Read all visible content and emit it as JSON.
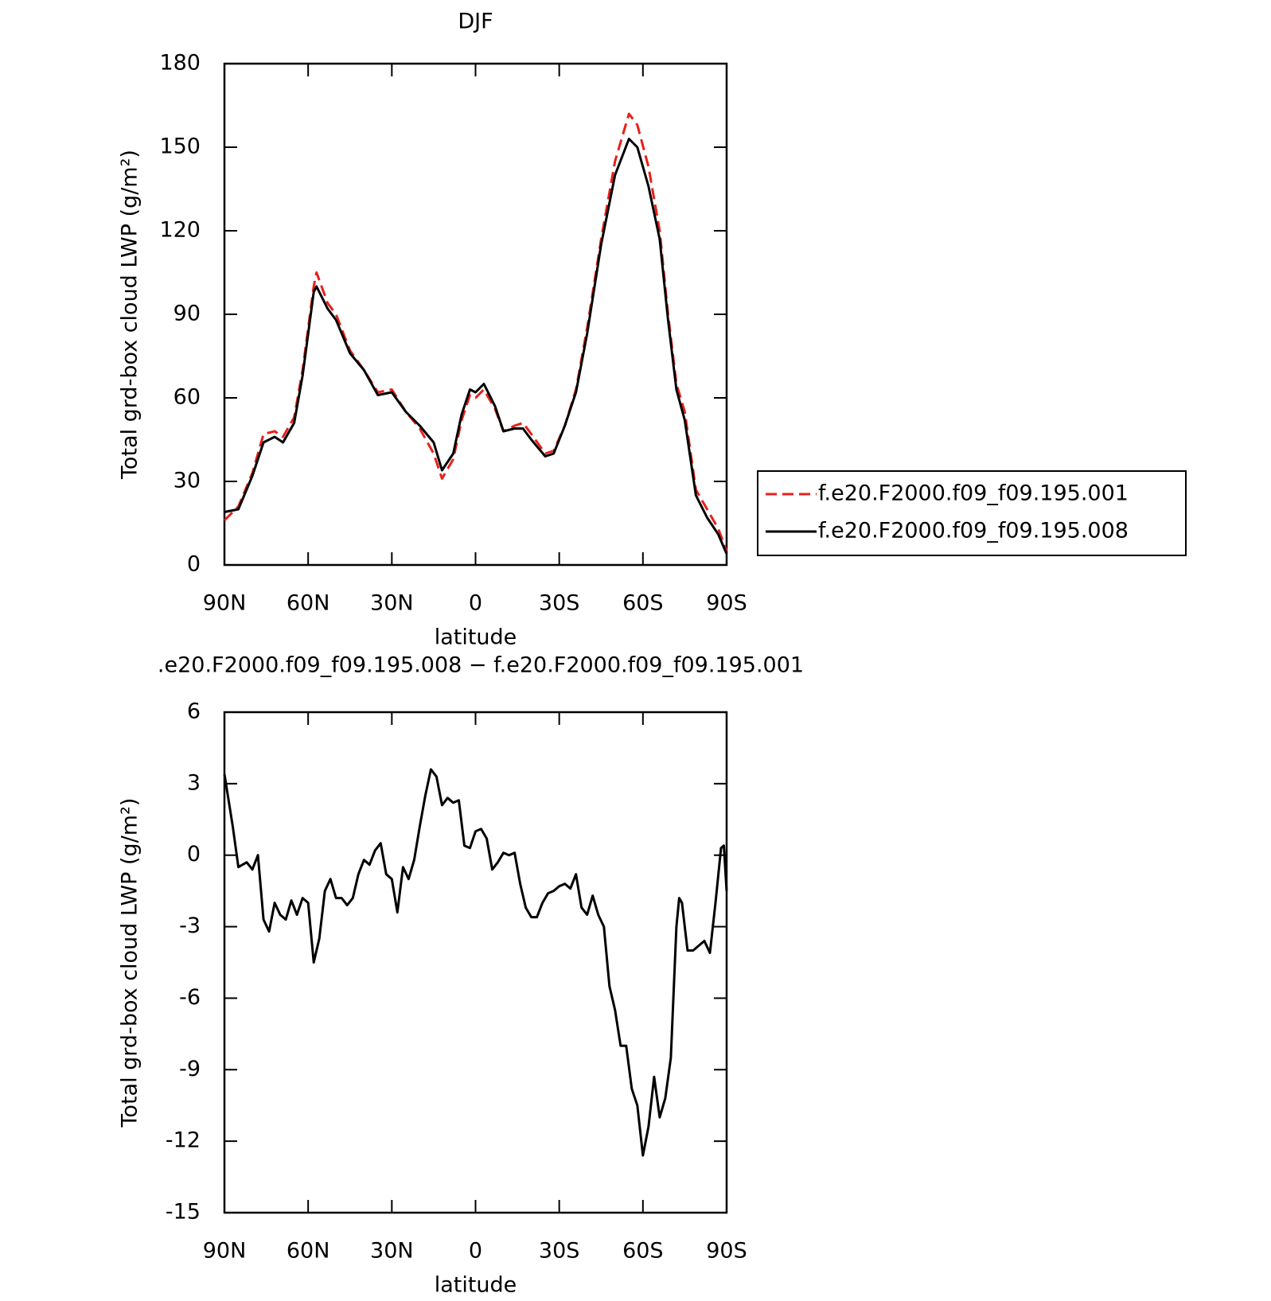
{
  "chart_data": [
    {
      "type": "line",
      "title": "DJF",
      "xlabel": "latitude",
      "ylabel": "Total grd-box cloud LWP (g/m²)",
      "x": [
        90,
        85,
        80,
        76,
        72,
        69,
        65,
        62,
        58,
        57,
        53,
        50,
        45,
        40,
        35,
        30,
        25,
        20,
        15,
        12,
        8,
        5,
        2,
        0,
        -3,
        -7,
        -10,
        -14,
        -17,
        -20,
        -25,
        -28,
        -32,
        -36,
        -40,
        -45,
        -50,
        -55,
        -58,
        -62,
        -66,
        -69,
        -72,
        -75,
        -79,
        -83,
        -87,
        -90
      ],
      "series": [
        {
          "name": "f.e20.F2000.f09_f09.195.001",
          "color": "#e8201a",
          "line_style": "dashed",
          "values": [
            16,
            21,
            33,
            47,
            48,
            46,
            53,
            70,
            100,
            105,
            94,
            90,
            77,
            70,
            62,
            63,
            55,
            49,
            40,
            31,
            38,
            52,
            61,
            60,
            63,
            56,
            48,
            50,
            51,
            47,
            40,
            41,
            50,
            63,
            85,
            117,
            145,
            162,
            158,
            143,
            120,
            90,
            65,
            55,
            27,
            20,
            13,
            5
          ]
        },
        {
          "name": "f.e20.F2000.f09_f09.195.008",
          "color": "#000000",
          "line_style": "solid",
          "values": [
            19,
            20,
            32,
            44,
            46,
            44,
            51,
            68,
            98,
            100,
            92,
            88,
            76,
            70,
            61,
            62,
            55,
            50,
            44,
            34,
            40,
            54,
            63,
            62,
            65,
            57,
            48,
            49,
            49,
            45,
            39,
            40,
            50,
            62,
            83,
            115,
            140,
            153,
            150,
            136,
            117,
            88,
            63,
            52,
            25,
            17,
            11,
            4
          ]
        }
      ],
      "xlim": [
        90,
        -90
      ],
      "xticks": [
        {
          "value": 90,
          "label": "90N"
        },
        {
          "value": 60,
          "label": "60N"
        },
        {
          "value": 30,
          "label": "30N"
        },
        0,
        {
          "value": -30,
          "label": "30S"
        },
        {
          "value": -60,
          "label": "60S"
        },
        {
          "value": -90,
          "label": "90S"
        }
      ],
      "ylim": [
        0,
        180
      ],
      "yticks": [
        0,
        30,
        60,
        90,
        120,
        150,
        180
      ],
      "legend": "right"
    },
    {
      "type": "line",
      "title": ".e20.F2000.f09_f09.195.008 − f.e20.F2000.f09_f09.195.001",
      "xlabel": "latitude",
      "ylabel": "Total grd-box cloud LWP (g/m²)",
      "x": [
        90,
        87,
        85,
        82,
        80,
        78,
        76,
        74,
        72,
        70,
        68,
        66,
        64,
        62,
        60,
        58,
        56,
        54,
        52,
        50,
        48,
        46,
        44,
        42,
        40,
        38,
        36,
        34,
        32,
        30,
        28,
        26,
        24,
        22,
        20,
        18,
        16,
        14,
        12,
        10,
        8,
        6,
        4,
        2,
        0,
        -2,
        -4,
        -6,
        -8,
        -10,
        -12,
        -14,
        -16,
        -18,
        -20,
        -22,
        -24,
        -26,
        -28,
        -30,
        -32,
        -34,
        -36,
        -38,
        -40,
        -42,
        -44,
        -46,
        -48,
        -50,
        -52,
        -54,
        -56,
        -58,
        -60,
        -62,
        -64,
        -66,
        -68,
        -70,
        -72,
        -73,
        -74,
        -76,
        -78,
        -80,
        -82,
        -84,
        -86,
        -88,
        -89,
        -90
      ],
      "values": [
        3.4,
        1.2,
        -0.5,
        -0.3,
        -0.6,
        0,
        -2.7,
        -3.2,
        -2,
        -2.5,
        -2.7,
        -1.9,
        -2.5,
        -1.8,
        -2,
        -4.5,
        -3.5,
        -1.5,
        -1,
        -1.8,
        -1.8,
        -2.1,
        -1.8,
        -0.8,
        -0.2,
        -0.4,
        0.2,
        0.5,
        -0.8,
        -1,
        -2.4,
        -0.5,
        -1,
        -0.2,
        1.2,
        2.5,
        3.6,
        3.3,
        2.1,
        2.4,
        2.2,
        2.3,
        0.4,
        0.3,
        1,
        1.1,
        0.7,
        -0.6,
        -0.3,
        0.1,
        0,
        0.1,
        -1.2,
        -2.2,
        -2.6,
        -2.6,
        -2,
        -1.6,
        -1.5,
        -1.3,
        -1.2,
        -1.4,
        -0.8,
        -2.2,
        -2.5,
        -1.7,
        -2.5,
        -3,
        -5.5,
        -6.5,
        -8,
        -8,
        -9.8,
        -10.5,
        -12.6,
        -11.4,
        -9.3,
        -11,
        -10.2,
        -8.5,
        -3,
        -1.8,
        -2,
        -4,
        -4,
        -3.8,
        -3.6,
        -4.1,
        -2,
        0.3,
        0.4,
        -1.5
      ],
      "color": "#000000",
      "xlim": [
        90,
        -90
      ],
      "xticks": [
        {
          "value": 90,
          "label": "90N"
        },
        {
          "value": 60,
          "label": "60N"
        },
        {
          "value": 30,
          "label": "30N"
        },
        0,
        {
          "value": -30,
          "label": "30S"
        },
        {
          "value": -60,
          "label": "60S"
        },
        {
          "value": -90,
          "label": "90S"
        }
      ],
      "ylim": [
        -15,
        6
      ],
      "yticks": [
        -15,
        -12,
        -9,
        -6,
        -3,
        0,
        3,
        6
      ]
    }
  ]
}
